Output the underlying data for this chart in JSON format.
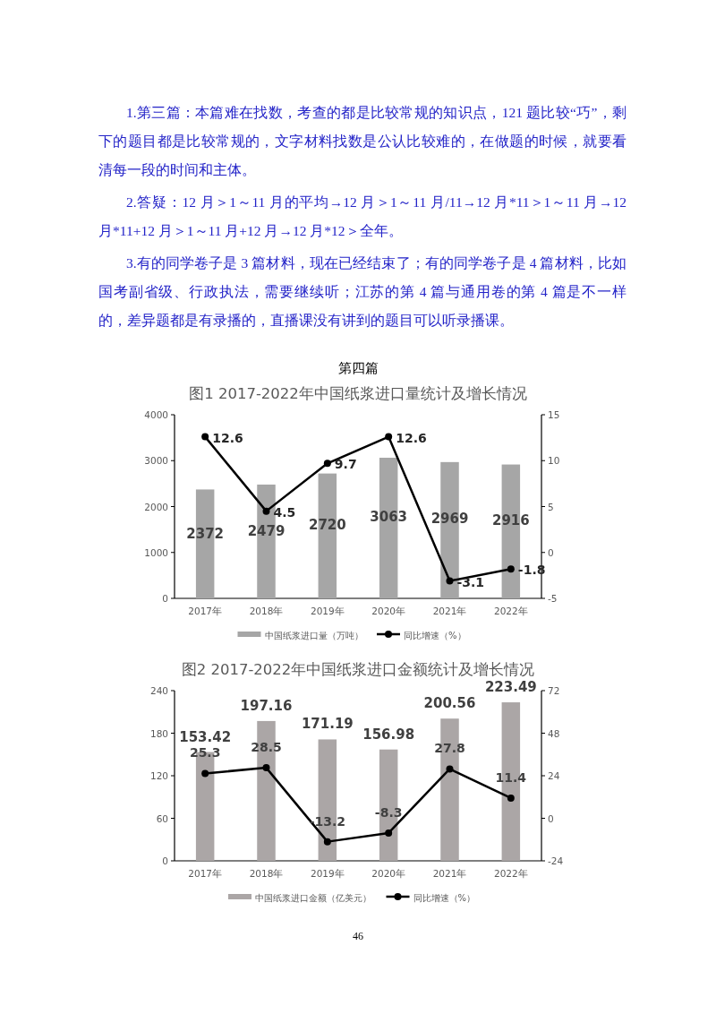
{
  "chart_data": [
    {
      "type": "bar",
      "title": "图1 2017-2022年中国纸浆进口量统计及增长情况",
      "annotations": [
        "1.第三篇：本篇难在找数，考查的都是比较常规的知识点，121 题比较“巧”，剩下的题目都是比较常规的，文字材料找数是公认比较难的，在做题的时候，就要看清每一段的时间和主体。",
        "2.答疑：12 月＞1～11 月的平均→12 月＞1～11 月/11→12 月*11＞1～11 月→12 月*11+12 月＞1～11 月+12 月→12 月*12＞全年。",
        "3.有的同学卷子是 3 篇材料，现在已经结束了；有的同学卷子是 4 篇材料，比如国考副省级、行政执法，需要继续听；江苏的第 4 篇与通用卷的第 4 篇是不一样的，差异题都是有录播的，直播课没有讲到的题目可以听录播课。",
        "第四篇"
      ],
      "categories": [
        "2017年",
        "2018年",
        "2019年",
        "2020年",
        "2021年",
        "2022年"
      ],
      "series": [
        {
          "name": "中国纸浆进口量（万吨）",
          "color": "#a6a6a6",
          "values": [
            2372,
            2479,
            2720,
            3063,
            2969,
            2916
          ]
        },
        {
          "name": "同比增速（%）",
          "type": "line",
          "axis": "y2",
          "color": "#000000",
          "values": [
            12.6,
            4.5,
            9.7,
            12.6,
            -3.1,
            -1.8
          ]
        }
      ],
      "ylim": [
        0,
        4000
      ],
      "yticks": [
        0,
        1000,
        2000,
        3000,
        4000
      ],
      "y2lim": [
        -5,
        15
      ],
      "y2ticks": [
        -5,
        0,
        5,
        10,
        15
      ],
      "data_labels": true,
      "legend": "bottom",
      "marker": "circle"
    },
    {
      "type": "bar",
      "title": "图2 2017-2022年中国纸浆进口金额统计及增长情况",
      "annotations": [
        "46"
      ],
      "categories": [
        "2017年",
        "2018年",
        "2019年",
        "2020年",
        "2021年",
        "2022年"
      ],
      "series": [
        {
          "name": "中国纸浆进口金额（亿美元）",
          "color": "#aba6a6",
          "values": [
            153.42,
            197.16,
            171.19,
            156.98,
            200.56,
            223.49
          ]
        },
        {
          "name": "同比增速（%）",
          "type": "line",
          "axis": "y2",
          "color": "#000000",
          "values": [
            25.3,
            28.5,
            -13.2,
            -8.3,
            27.8,
            11.4
          ]
        }
      ],
      "ylim": [
        0,
        240
      ],
      "yticks": [
        0,
        60,
        120,
        180,
        240
      ],
      "y2lim": [
        -24,
        72
      ],
      "y2ticks": [
        -24,
        0,
        24,
        48,
        72
      ],
      "data_labels": true,
      "legend": "bottom",
      "marker": "circle"
    }
  ]
}
